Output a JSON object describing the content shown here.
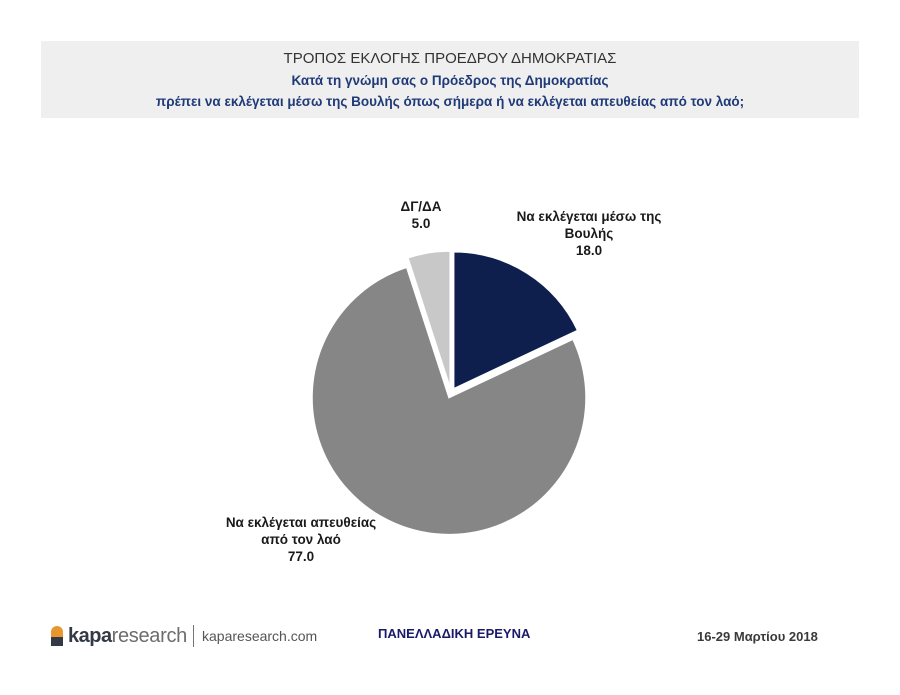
{
  "header": {
    "title": "ΤΡΟΠΟΣ ΕΚΛΟΓΗΣ ΠΡΟΕΔΡΟΥ ΔΗΜΟΚΡΑΤΙΑΣ",
    "question_line1": "Κατά τη γνώμη σας ο Πρόεδρος της Δημοκρατίας",
    "question_line2": "πρέπει να εκλέγεται μέσω της Βουλής όπως σήμερα ή να εκλέγεται απευθείας από τον λαό;"
  },
  "chart_data": {
    "type": "pie",
    "slices": [
      {
        "label_lines": [
          "Να εκλέγεται μέσω της",
          "Βουλής"
        ],
        "value": 18.0,
        "value_text": "18.0",
        "color": "#0e1f4d"
      },
      {
        "label_lines": [
          "Να εκλέγεται απευθείας",
          "από τον λαό"
        ],
        "value": 77.0,
        "value_text": "77.0",
        "color": "#868686"
      },
      {
        "label_lines": [
          "ΔΓ/ΔΑ"
        ],
        "value": 5.0,
        "value_text": "5.0",
        "color": "#c8c8c8"
      }
    ]
  },
  "footer": {
    "logo_part1": "kapa",
    "logo_part2": "research",
    "website": "kaparesearch.com",
    "survey_label": "ΠΑΝΕΛΛΑΔΙΚΗ ΕΡΕΥΝΑ",
    "date": "16-29 Μαρτίου 2018",
    "logo_color": "#e8962e"
  }
}
